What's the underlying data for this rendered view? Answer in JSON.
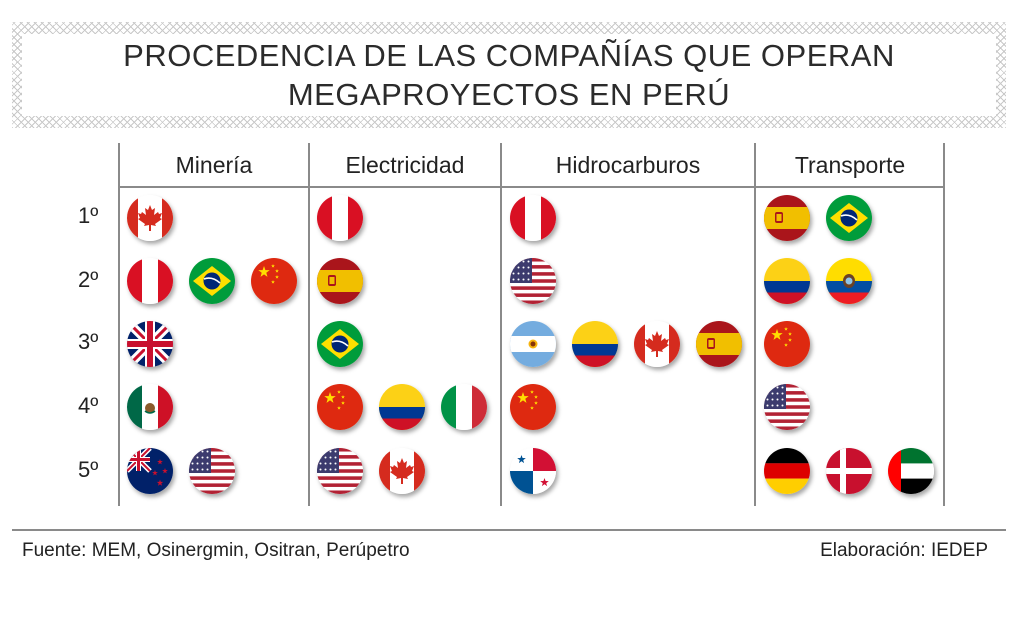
{
  "title": {
    "line1": "PROCEDENCIA DE LAS COMPAÑÍAS QUE OPERAN",
    "line2": "MEGAPROYECTOS EN PERÚ"
  },
  "columns": [
    "Minería",
    "Electricidad",
    "Hidrocarburos",
    "Transporte"
  ],
  "rows": [
    "1º",
    "2º",
    "3º",
    "4º",
    "5º"
  ],
  "flags": {
    "mineria": [
      [
        "canada-flag-icon"
      ],
      [
        "peru-flag-icon",
        "brazil-flag-icon",
        "china-flag-icon"
      ],
      [
        "uk-flag-icon"
      ],
      [
        "mexico-flag-icon"
      ],
      [
        "new-zealand-flag-icon",
        "usa-flag-icon"
      ]
    ],
    "electricidad": [
      [
        "peru-flag-icon"
      ],
      [
        "spain-flag-icon"
      ],
      [
        "brazil-flag-icon"
      ],
      [
        "china-flag-icon",
        "colombia-flag-icon",
        "italy-flag-icon"
      ],
      [
        "usa-flag-icon",
        "canada-flag-icon"
      ]
    ],
    "hidrocarburos": [
      [
        "peru-flag-icon"
      ],
      [
        "usa-flag-icon"
      ],
      [
        "argentina-flag-icon",
        "colombia-flag-icon",
        "canada-flag-icon",
        "spain-flag-icon"
      ],
      [
        "china-flag-icon"
      ],
      [
        "panama-flag-icon"
      ]
    ],
    "transporte": [
      [
        "spain-flag-icon",
        "brazil-flag-icon"
      ],
      [
        "colombia-flag-icon",
        "ecuador-flag-icon"
      ],
      [
        "china-flag-icon"
      ],
      [
        "usa-flag-icon"
      ],
      [
        "germany-flag-icon",
        "denmark-flag-icon",
        "uae-flag-icon"
      ]
    ]
  },
  "footer": {
    "source": "Fuente: MEM, Osinergmin, Ositran, Perúpetro",
    "credit": "Elaboración: IEDEP"
  }
}
